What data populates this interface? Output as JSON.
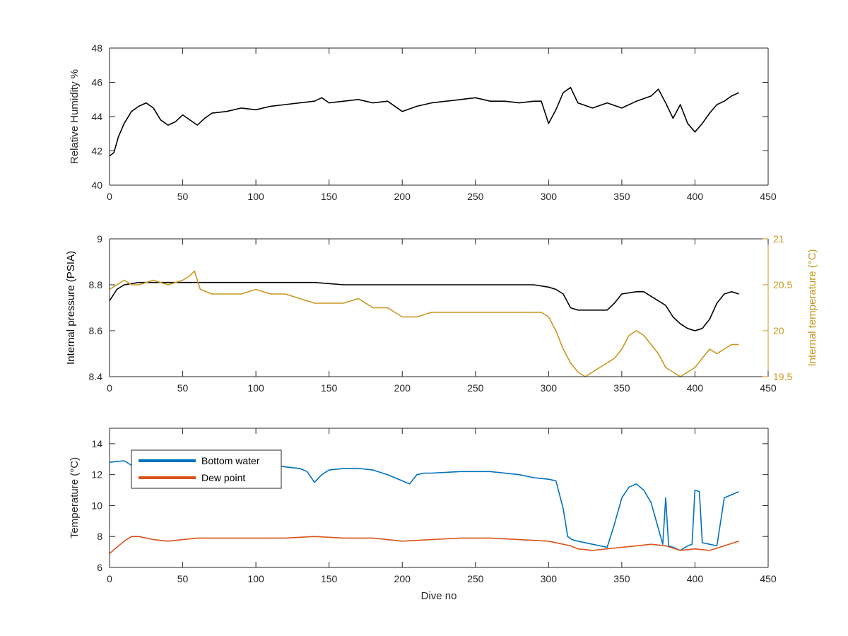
{
  "chart_data": [
    {
      "type": "line",
      "xlabel": "",
      "ylabel": "Relative Humidity %",
      "xlim": [
        0,
        450
      ],
      "ylim": [
        40,
        48
      ],
      "xticks": [
        "0",
        "50",
        "100",
        "150",
        "200",
        "250",
        "300",
        "350",
        "400",
        "450"
      ],
      "yticks": [
        "40",
        "42",
        "44",
        "46",
        "48"
      ],
      "grid": false,
      "series": [
        {
          "color": "#000000",
          "x": [
            0,
            3,
            6,
            10,
            15,
            20,
            25,
            30,
            35,
            40,
            45,
            50,
            55,
            60,
            65,
            70,
            80,
            90,
            100,
            110,
            120,
            130,
            140,
            145,
            150,
            160,
            170,
            180,
            190,
            200,
            210,
            220,
            230,
            240,
            250,
            260,
            270,
            280,
            290,
            295,
            300,
            305,
            310,
            315,
            320,
            330,
            340,
            350,
            360,
            370,
            375,
            380,
            385,
            390,
            395,
            400,
            405,
            410,
            415,
            420,
            425,
            430
          ],
          "y": [
            41.7,
            41.9,
            42.8,
            43.6,
            44.3,
            44.6,
            44.8,
            44.5,
            43.8,
            43.5,
            43.7,
            44.1,
            43.8,
            43.5,
            43.9,
            44.2,
            44.3,
            44.5,
            44.4,
            44.6,
            44.7,
            44.8,
            44.9,
            45.1,
            44.8,
            44.9,
            45.0,
            44.8,
            44.9,
            44.3,
            44.6,
            44.8,
            44.9,
            45.0,
            45.1,
            44.9,
            44.9,
            44.8,
            44.9,
            44.9,
            43.6,
            44.4,
            45.4,
            45.7,
            44.8,
            44.5,
            44.8,
            44.5,
            44.9,
            45.2,
            45.6,
            44.8,
            43.9,
            44.7,
            43.6,
            43.1,
            43.6,
            44.2,
            44.7,
            44.9,
            45.2,
            45.4
          ]
        }
      ]
    },
    {
      "type": "line",
      "xlabel": "",
      "ylabel": "Internal pressure (PSIA)",
      "y2label": "Internal temperature (°C)",
      "xlim": [
        0,
        450
      ],
      "ylim": [
        8.4,
        9.0
      ],
      "y2lim": [
        19.5,
        21.0
      ],
      "xticks": [
        "0",
        "50",
        "100",
        "150",
        "200",
        "250",
        "300",
        "350",
        "400",
        "450"
      ],
      "yticks": [
        "8.4",
        "8.6",
        "8.8",
        "9"
      ],
      "y2ticks": [
        "19.5",
        "20",
        "20.5",
        "21"
      ],
      "grid": false,
      "series": [
        {
          "color": "#000000",
          "axis": "left",
          "x": [
            0,
            5,
            10,
            20,
            40,
            60,
            80,
            100,
            120,
            140,
            160,
            180,
            200,
            210,
            220,
            240,
            260,
            280,
            290,
            300,
            305,
            310,
            315,
            320,
            330,
            340,
            345,
            350,
            360,
            365,
            370,
            375,
            380,
            385,
            390,
            395,
            400,
            405,
            410,
            415,
            420,
            425,
            430
          ],
          "y": [
            8.73,
            8.78,
            8.8,
            8.81,
            8.81,
            8.81,
            8.81,
            8.81,
            8.81,
            8.81,
            8.8,
            8.8,
            8.8,
            8.8,
            8.8,
            8.8,
            8.8,
            8.8,
            8.8,
            8.79,
            8.78,
            8.76,
            8.7,
            8.69,
            8.69,
            8.69,
            8.72,
            8.76,
            8.77,
            8.77,
            8.75,
            8.73,
            8.71,
            8.66,
            8.63,
            8.61,
            8.6,
            8.61,
            8.65,
            8.72,
            8.76,
            8.77,
            8.76
          ]
        },
        {
          "color": "#C8961E",
          "axis": "right",
          "x": [
            0,
            5,
            10,
            15,
            20,
            30,
            40,
            50,
            55,
            58,
            62,
            70,
            80,
            90,
            100,
            110,
            120,
            130,
            140,
            150,
            160,
            170,
            180,
            190,
            200,
            210,
            220,
            230,
            240,
            250,
            260,
            270,
            280,
            290,
            295,
            300,
            305,
            310,
            315,
            320,
            325,
            330,
            335,
            340,
            345,
            350,
            355,
            360,
            365,
            370,
            375,
            380,
            385,
            390,
            395,
            400,
            405,
            410,
            415,
            420,
            425,
            430
          ],
          "y": [
            20.45,
            20.5,
            20.55,
            20.5,
            20.5,
            20.55,
            20.5,
            20.55,
            20.6,
            20.65,
            20.45,
            20.4,
            20.4,
            20.4,
            20.45,
            20.4,
            20.4,
            20.35,
            20.3,
            20.3,
            20.3,
            20.35,
            20.25,
            20.25,
            20.15,
            20.15,
            20.2,
            20.2,
            20.2,
            20.2,
            20.2,
            20.2,
            20.2,
            20.2,
            20.2,
            20.15,
            20.0,
            19.8,
            19.65,
            19.55,
            19.5,
            19.55,
            19.6,
            19.65,
            19.7,
            19.8,
            19.95,
            20.0,
            19.95,
            19.85,
            19.75,
            19.6,
            19.55,
            19.5,
            19.55,
            19.6,
            19.7,
            19.8,
            19.75,
            19.8,
            19.85,
            19.85
          ]
        }
      ]
    },
    {
      "type": "line",
      "xlabel": "Dive no",
      "ylabel": "Temperature (°C)",
      "xlim": [
        0,
        450
      ],
      "ylim": [
        6,
        15
      ],
      "xticks": [
        "0",
        "50",
        "100",
        "150",
        "200",
        "250",
        "300",
        "350",
        "400",
        "450"
      ],
      "yticks": [
        "6",
        "8",
        "10",
        "12",
        "14"
      ],
      "grid": false,
      "legend": {
        "placement": "top-left",
        "entries": [
          "Bottom water",
          "Dew point"
        ]
      },
      "series": [
        {
          "name": "Bottom water",
          "color": "#0072BD",
          "x": [
            0,
            10,
            15,
            20,
            40,
            60,
            80,
            100,
            110,
            120,
            130,
            135,
            140,
            145,
            150,
            160,
            170,
            180,
            190,
            200,
            205,
            210,
            215,
            220,
            240,
            260,
            280,
            290,
            300,
            305,
            310,
            313,
            316,
            320,
            330,
            340,
            345,
            350,
            355,
            360,
            365,
            370,
            375,
            378,
            380,
            382,
            385,
            390,
            395,
            398,
            400,
            403,
            405,
            410,
            415,
            420,
            425,
            430
          ],
          "y": [
            12.8,
            12.9,
            12.6,
            12.7,
            12.8,
            12.8,
            12.7,
            12.6,
            12.7,
            12.5,
            12.4,
            12.2,
            11.5,
            12.0,
            12.3,
            12.4,
            12.4,
            12.3,
            12.0,
            11.6,
            11.4,
            12.0,
            12.1,
            12.1,
            12.2,
            12.2,
            12.0,
            11.8,
            11.7,
            11.6,
            9.8,
            8.0,
            7.8,
            7.7,
            7.5,
            7.3,
            8.8,
            10.5,
            11.2,
            11.4,
            11.0,
            10.2,
            8.5,
            7.5,
            10.5,
            7.4,
            7.3,
            7.1,
            7.4,
            7.5,
            11.0,
            10.9,
            7.6,
            7.5,
            7.4,
            10.5,
            10.7,
            10.9
          ]
        },
        {
          "name": "Dew point",
          "color": "#D95319",
          "x": [
            0,
            5,
            10,
            15,
            20,
            30,
            40,
            50,
            60,
            80,
            100,
            120,
            140,
            160,
            180,
            200,
            220,
            240,
            260,
            280,
            300,
            310,
            315,
            320,
            330,
            340,
            350,
            360,
            370,
            380,
            390,
            400,
            410,
            420,
            430
          ],
          "y": [
            6.9,
            7.3,
            7.7,
            8.0,
            8.0,
            7.8,
            7.7,
            7.8,
            7.9,
            7.9,
            7.9,
            7.9,
            8.0,
            7.9,
            7.9,
            7.7,
            7.8,
            7.9,
            7.9,
            7.8,
            7.7,
            7.5,
            7.4,
            7.2,
            7.1,
            7.2,
            7.3,
            7.4,
            7.5,
            7.4,
            7.1,
            7.2,
            7.1,
            7.4,
            7.7
          ]
        }
      ]
    }
  ]
}
